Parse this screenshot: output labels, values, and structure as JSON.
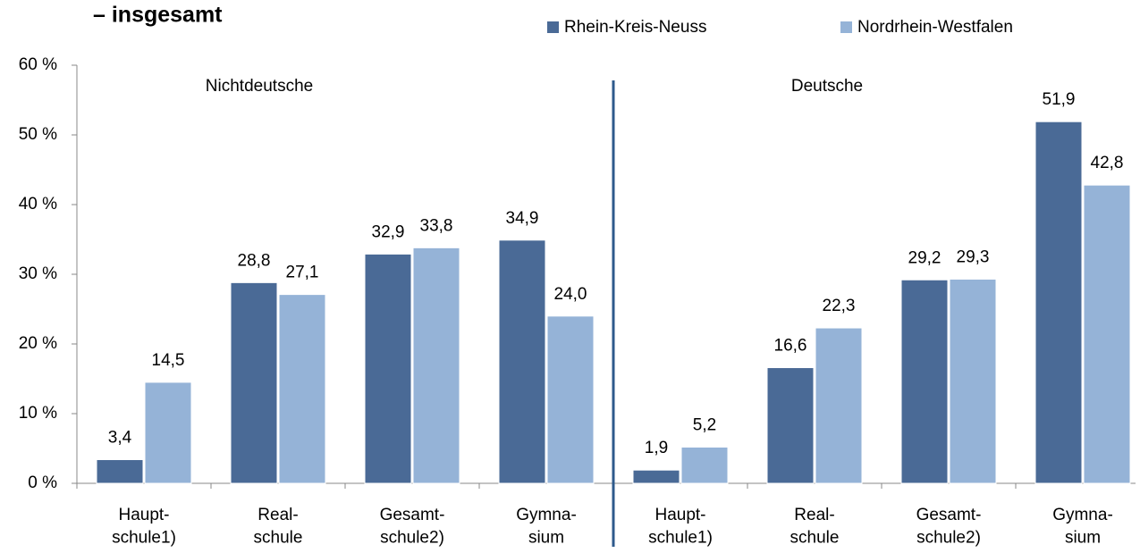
{
  "chart_data": {
    "type": "bar",
    "title": "– insgesamt",
    "annotations": [
      "Nichtdeutsche",
      "Deutsche"
    ],
    "categories": [
      "Haupt-\nschule1)",
      "Real-\nschule",
      "Gesamt-\nschule2)",
      "Gymna-\nsium",
      "Haupt-\nschule1)",
      "Real-\nschule",
      "Gesamt-\nschule2)",
      "Gymna-\nsium"
    ],
    "series": [
      {
        "name": "Rhein-Kreis-Neuss",
        "color": "#4a6a96",
        "values": [
          3.4,
          28.8,
          32.9,
          34.9,
          1.9,
          16.6,
          29.2,
          51.9
        ],
        "value_labels": [
          "3,4",
          "28,8",
          "32,9",
          "34,9",
          "1,9",
          "16,6",
          "29,2",
          "51,9"
        ]
      },
      {
        "name": "Nordrhein-Westfalen",
        "color": "#95b3d7",
        "values": [
          14.5,
          27.1,
          33.8,
          24.0,
          5.2,
          22.3,
          29.3,
          42.8
        ],
        "value_labels": [
          "14,5",
          "27,1",
          "33,8",
          "24,0",
          "5,2",
          "22,3",
          "29,3",
          "42,8"
        ]
      }
    ],
    "ylim": [
      0,
      60
    ],
    "yticks": [
      {
        "value": 0,
        "label": "0 %"
      },
      {
        "value": 10,
        "label": "10 %"
      },
      {
        "value": 20,
        "label": "20 %"
      },
      {
        "value": 30,
        "label": "30 %"
      },
      {
        "value": 40,
        "label": "40 %"
      },
      {
        "value": 50,
        "label": "50 %"
      },
      {
        "value": 60,
        "label": "60 %"
      }
    ],
    "legend": "top-right"
  }
}
